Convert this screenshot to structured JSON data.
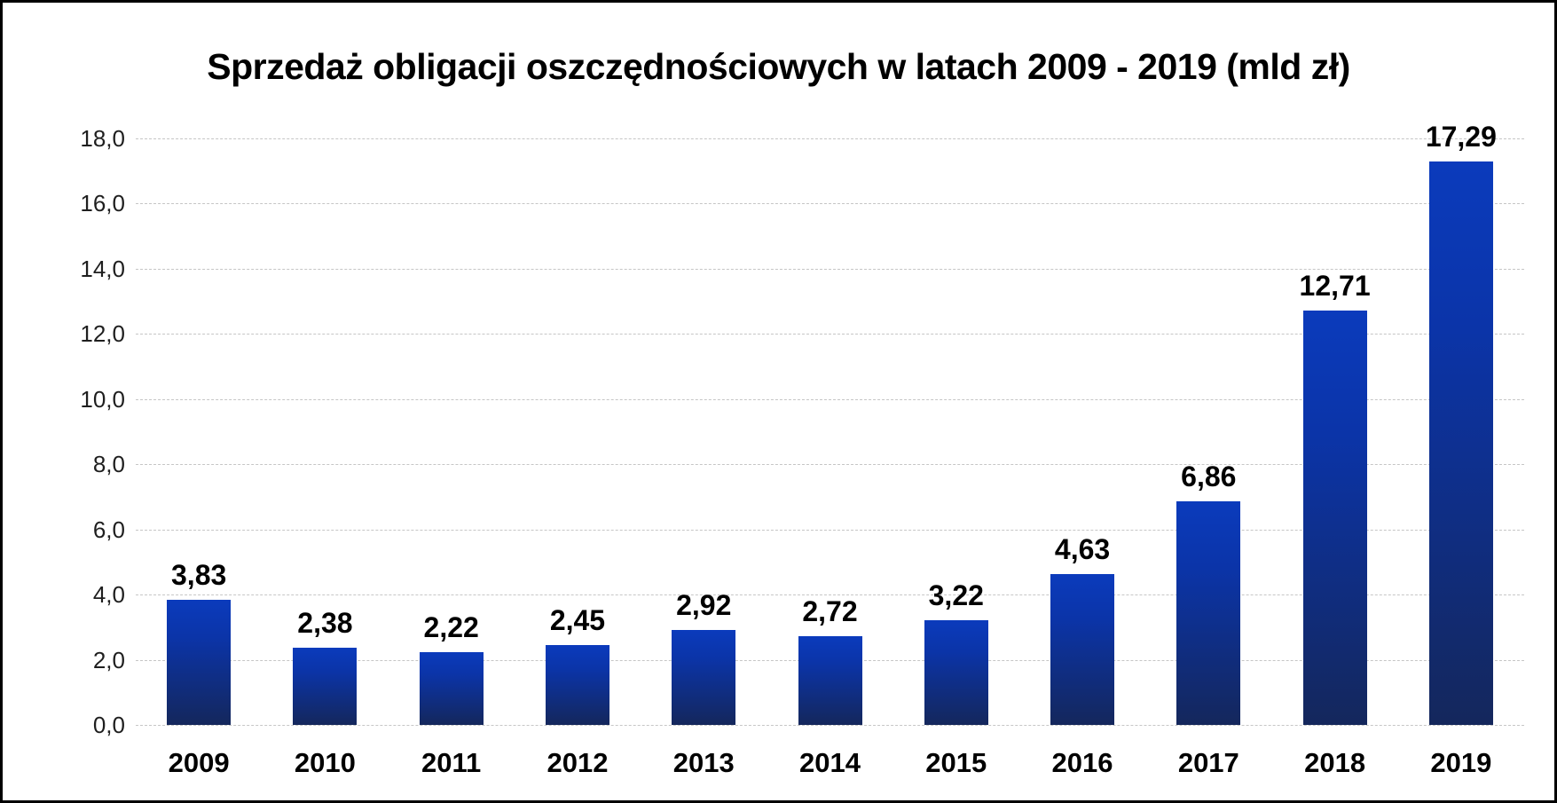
{
  "chart_data": {
    "type": "bar",
    "title": "Sprzedaż obligacji oszczędnościowych w latach 2009 - 2019 (mld zł)",
    "categories": [
      "2009",
      "2010",
      "2011",
      "2012",
      "2013",
      "2014",
      "2015",
      "2016",
      "2017",
      "2018",
      "2019"
    ],
    "values": [
      3.83,
      2.38,
      2.22,
      2.45,
      2.92,
      2.72,
      3.22,
      4.63,
      6.86,
      12.71,
      17.29
    ],
    "value_labels": [
      "3,83",
      "2,38",
      "2,22",
      "2,45",
      "2,92",
      "2,72",
      "3,22",
      "4,63",
      "6,86",
      "12,71",
      "17,29"
    ],
    "xlabel": "",
    "ylabel": "",
    "ylim": [
      0,
      18
    ],
    "ytick_step": 2,
    "ytick_labels": [
      "0,0",
      "2,0",
      "4,0",
      "6,0",
      "8,0",
      "10,0",
      "12,0",
      "14,0",
      "16,0",
      "18,0"
    ],
    "legend": "none",
    "grid": "horizontal-dashed",
    "colors": {
      "bar_gradient_top": "#0b3bbc",
      "bar_gradient_bottom": "#14275c",
      "gridline": "#c6c6c6",
      "title_text": "#000000",
      "data_label_text": "#000000",
      "axis_tick_text": "#1f1f1f",
      "background": "#ffffff",
      "frame_border": "#000000"
    }
  }
}
